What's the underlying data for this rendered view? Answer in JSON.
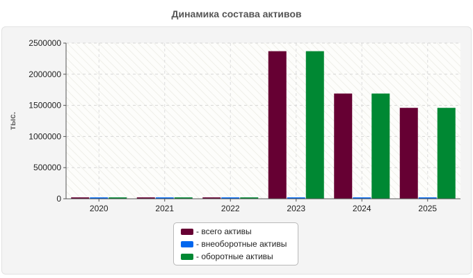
{
  "chart_data": {
    "type": "bar",
    "title": "Динамика состава активов",
    "ylabel": "тыс.",
    "xlabel": "",
    "categories": [
      "2020",
      "2021",
      "2022",
      "2023",
      "2024",
      "2025"
    ],
    "ylim": [
      0,
      2500000
    ],
    "yticks": [
      0,
      500000,
      1000000,
      1500000,
      2000000,
      2500000
    ],
    "grid": true,
    "legend_position": "bottom",
    "series": [
      {
        "name": "- всего активы",
        "color": "#660033",
        "values": [
          12000,
          12000,
          12000,
          2370000,
          1690000,
          1460000
        ]
      },
      {
        "name": "- внеоборотные активы",
        "color": "#0066ee",
        "values": [
          3000,
          3000,
          3000,
          8000,
          7000,
          6000
        ]
      },
      {
        "name": "- оборотные активы",
        "color": "#008833",
        "values": [
          12000,
          12000,
          12000,
          2370000,
          1690000,
          1460000
        ]
      }
    ]
  }
}
